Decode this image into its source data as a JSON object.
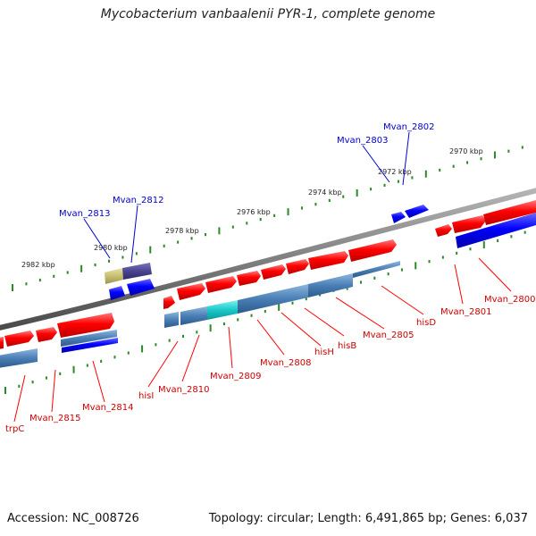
{
  "title": "Mycobacterium vanbaalenii PYR-1, complete genome",
  "footer": {
    "accession": "Accession: NC_008726",
    "topology": "Topology: circular; Length: 6,491,865 bp; Genes: 6,037"
  },
  "scale_labels": [
    "2970 kbp",
    "2972 kbp",
    "2974 kbp",
    "2976 kbp",
    "2978 kbp",
    "2980 kbp",
    "2982 kbp"
  ],
  "gene_labels_top": [
    "Mvan_2802",
    "Mvan_2803",
    "Mvan_2812",
    "Mvan_2813"
  ],
  "gene_labels_bottom": [
    "Mvan_2800",
    "Mvan_2801",
    "hisD",
    "Mvan_2805",
    "hisB",
    "hisH",
    "Mvan_2808",
    "Mvan_2809",
    "Mvan_2810",
    "hisI",
    "Mvan_2814",
    "Mvan_2815",
    "trpC"
  ],
  "colors": {
    "forward_gene": "#ff0000",
    "reverse_gene": "#0000ff",
    "label_top": "#0000cc",
    "label_bottom": "#cc0000",
    "backbone": "#808080",
    "scale_tick": "#2a8a2a",
    "highlight": "#19c8c8"
  }
}
